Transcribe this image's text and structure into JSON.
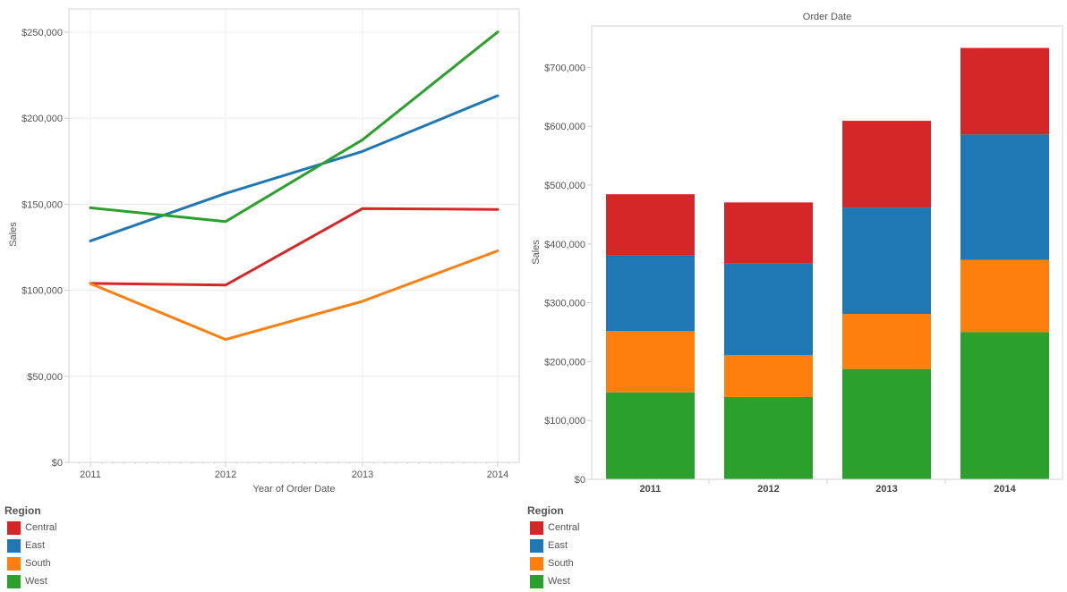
{
  "colors": {
    "Central": "#d62728",
    "East": "#1f77b4",
    "South": "#ff7f0e",
    "West": "#2ca02c"
  },
  "chart_data": [
    {
      "type": "line",
      "title": "",
      "xlabel": "Year of Order Date",
      "ylabel": "Sales",
      "x": [
        "2011",
        "2012",
        "2013",
        "2014"
      ],
      "ylim": [
        0,
        260000
      ],
      "yticks": [
        0,
        50000,
        100000,
        150000,
        200000,
        250000
      ],
      "ytick_labels": [
        "$0",
        "$50,000",
        "$100,000",
        "$150,000",
        "$200,000",
        "$250,000"
      ],
      "grid": true,
      "legend_title": "Region",
      "legend_position": "bottom-left",
      "series": [
        {
          "name": "Central",
          "values": [
            104000,
            103000,
            147500,
            147000
          ]
        },
        {
          "name": "East",
          "values": [
            128700,
            156300,
            180700,
            213100
          ]
        },
        {
          "name": "South",
          "values": [
            103900,
            71400,
            93600,
            122900
          ]
        },
        {
          "name": "West",
          "values": [
            147900,
            139900,
            187500,
            250100
          ]
        }
      ]
    },
    {
      "type": "bar",
      "stacked": true,
      "title": "Order Date",
      "xlabel": "",
      "ylabel": "Sales",
      "categories": [
        "2011",
        "2012",
        "2013",
        "2014"
      ],
      "ylim": [
        0,
        770000
      ],
      "yticks": [
        0,
        100000,
        200000,
        300000,
        400000,
        500000,
        600000,
        700000
      ],
      "ytick_labels": [
        "$0",
        "$100,000",
        "$200,000",
        "$300,000",
        "$400,000",
        "$500,000",
        "$600,000",
        "$700,000"
      ],
      "grid": false,
      "legend_title": "Region",
      "legend_position": "bottom-left",
      "stack_order": [
        "West",
        "South",
        "East",
        "Central"
      ],
      "series": [
        {
          "name": "Central",
          "values": [
            104000,
            103000,
            147500,
            147000
          ]
        },
        {
          "name": "East",
          "values": [
            128700,
            156300,
            180700,
            213100
          ]
        },
        {
          "name": "South",
          "values": [
            103900,
            71400,
            93600,
            122900
          ]
        },
        {
          "name": "West",
          "values": [
            147900,
            139900,
            187500,
            250100
          ]
        }
      ]
    }
  ],
  "legend_left": {
    "title": "Region",
    "items": [
      "Central",
      "East",
      "South",
      "West"
    ]
  },
  "legend_right": {
    "title": "Region",
    "items": [
      "Central",
      "East",
      "South",
      "West"
    ]
  }
}
